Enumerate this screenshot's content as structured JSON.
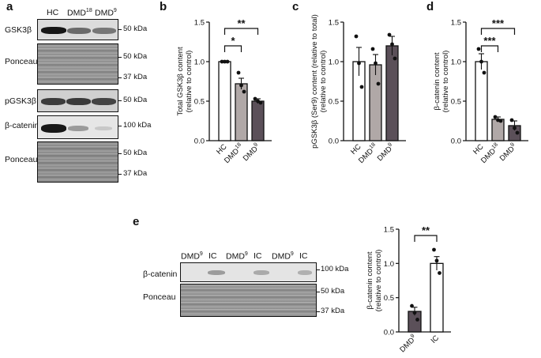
{
  "panel_labels": {
    "a": "a",
    "b": "b",
    "c": "c",
    "d": "d",
    "e": "e"
  },
  "blots_a": {
    "lanes": [
      "HC",
      "DMD",
      "DMD"
    ],
    "lane_superscripts": [
      "",
      "18",
      "9"
    ],
    "rows": [
      {
        "label": "GSK3β",
        "markers": [
          "50 kDa"
        ]
      },
      {
        "label": "Ponceau",
        "markers": [
          "50 kDa",
          "37 kDa"
        ]
      },
      {
        "label": "pGSK3β",
        "markers": [
          "50 kDa"
        ]
      },
      {
        "label": "β-catenin",
        "markers": [
          "100 kDa"
        ]
      },
      {
        "label": "Ponceau",
        "markers": [
          "50 kDa",
          "37 kDa"
        ]
      }
    ]
  },
  "blots_e": {
    "lanes": [
      "DMD",
      "IC",
      "DMD",
      "IC",
      "DMD",
      "IC"
    ],
    "lane_superscripts": [
      "9",
      "",
      "9",
      "",
      "9",
      ""
    ],
    "rows": [
      {
        "label": "β-catenin",
        "markers": [
          "100 kDa"
        ]
      },
      {
        "label": "Ponceau",
        "markers": [
          "50 kDa",
          "37 kDa"
        ]
      }
    ]
  },
  "colors": {
    "hc": "#ffffff",
    "dmd18": "#b0a8a7",
    "dmd9": "#5b5059",
    "ic": "#ffffff",
    "axis": "#111111"
  },
  "chart_data": [
    {
      "id": "b",
      "type": "bar",
      "ylabel_lines": [
        "Total GSK3β content",
        "(relative to control)"
      ],
      "ylim": [
        0,
        1.5
      ],
      "yticks": [
        0,
        0.5,
        1.0,
        1.5
      ],
      "tick_labels": [
        "0.0",
        "0.5",
        "1.0",
        "1.5"
      ],
      "categories": [
        "HC",
        "DMD",
        "DMD"
      ],
      "cat_superscripts": [
        "",
        "18",
        "9"
      ],
      "values": [
        1.0,
        0.72,
        0.5
      ],
      "errors": [
        0.01,
        0.07,
        0.03
      ],
      "points": [
        [
          1.0,
          1.0,
          1.0
        ],
        [
          0.86,
          0.7,
          0.62
        ],
        [
          0.53,
          0.5,
          0.48
        ]
      ],
      "colors": [
        "#ffffff",
        "#b0a8a7",
        "#5b5059"
      ],
      "significance": [
        {
          "from": 0,
          "to": 2,
          "label": "**"
        },
        {
          "from": 0,
          "to": 1,
          "label": "*"
        }
      ]
    },
    {
      "id": "c",
      "type": "bar",
      "ylabel_lines": [
        "pGSK3β (Ser9) content (relative to total)",
        "(relative to control)"
      ],
      "ylim": [
        0,
        1.5
      ],
      "yticks": [
        0,
        0.5,
        1.0,
        1.5
      ],
      "tick_labels": [
        "0.0",
        "0.5",
        "1.0",
        "1.5"
      ],
      "categories": [
        "HC",
        "DMD",
        "DMD"
      ],
      "cat_superscripts": [
        "",
        "18",
        "9"
      ],
      "values": [
        1.0,
        0.96,
        1.2
      ],
      "errors": [
        0.18,
        0.13,
        0.12
      ],
      "points": [
        [
          1.32,
          0.98,
          0.68
        ],
        [
          1.16,
          0.98,
          0.72
        ],
        [
          1.34,
          1.22,
          1.04
        ]
      ],
      "colors": [
        "#ffffff",
        "#b0a8a7",
        "#5b5059"
      ],
      "significance": []
    },
    {
      "id": "d",
      "type": "bar",
      "ylabel_lines": [
        "β-catenin content",
        "(relative to control)"
      ],
      "ylim": [
        0,
        1.5
      ],
      "yticks": [
        0,
        0.5,
        1.0,
        1.5
      ],
      "tick_labels": [
        "0.0",
        "0.5",
        "1.0",
        "1.5"
      ],
      "categories": [
        "HC",
        "DMD",
        "DMD"
      ],
      "cat_superscripts": [
        "",
        "18",
        "9"
      ],
      "values": [
        1.0,
        0.27,
        0.19
      ],
      "errors": [
        0.1,
        0.03,
        0.06
      ],
      "points": [
        [
          1.16,
          1.0,
          0.86
        ],
        [
          0.3,
          0.26,
          0.25
        ],
        [
          0.26,
          0.16,
          0.1
        ]
      ],
      "colors": [
        "#ffffff",
        "#b0a8a7",
        "#5b5059"
      ],
      "significance": [
        {
          "from": 0,
          "to": 2,
          "label": "***"
        },
        {
          "from": 0,
          "to": 1,
          "label": "***"
        }
      ]
    },
    {
      "id": "e",
      "type": "bar",
      "ylabel_lines": [
        "β-catenin content",
        "(relative to control)"
      ],
      "ylim": [
        0,
        1.5
      ],
      "yticks": [
        0,
        0.5,
        1.0,
        1.5
      ],
      "tick_labels": [
        "0.0",
        "0.5",
        "1.0",
        "1.5"
      ],
      "categories": [
        "DMD",
        "IC"
      ],
      "cat_superscripts": [
        "9",
        ""
      ],
      "values": [
        0.3,
        1.0
      ],
      "errors": [
        0.06,
        0.1
      ],
      "points": [
        [
          0.38,
          0.28,
          0.18
        ],
        [
          1.2,
          1.04,
          0.86
        ]
      ],
      "colors": [
        "#5b5059",
        "#ffffff"
      ],
      "significance": [
        {
          "from": 0,
          "to": 1,
          "label": "**"
        }
      ]
    }
  ]
}
